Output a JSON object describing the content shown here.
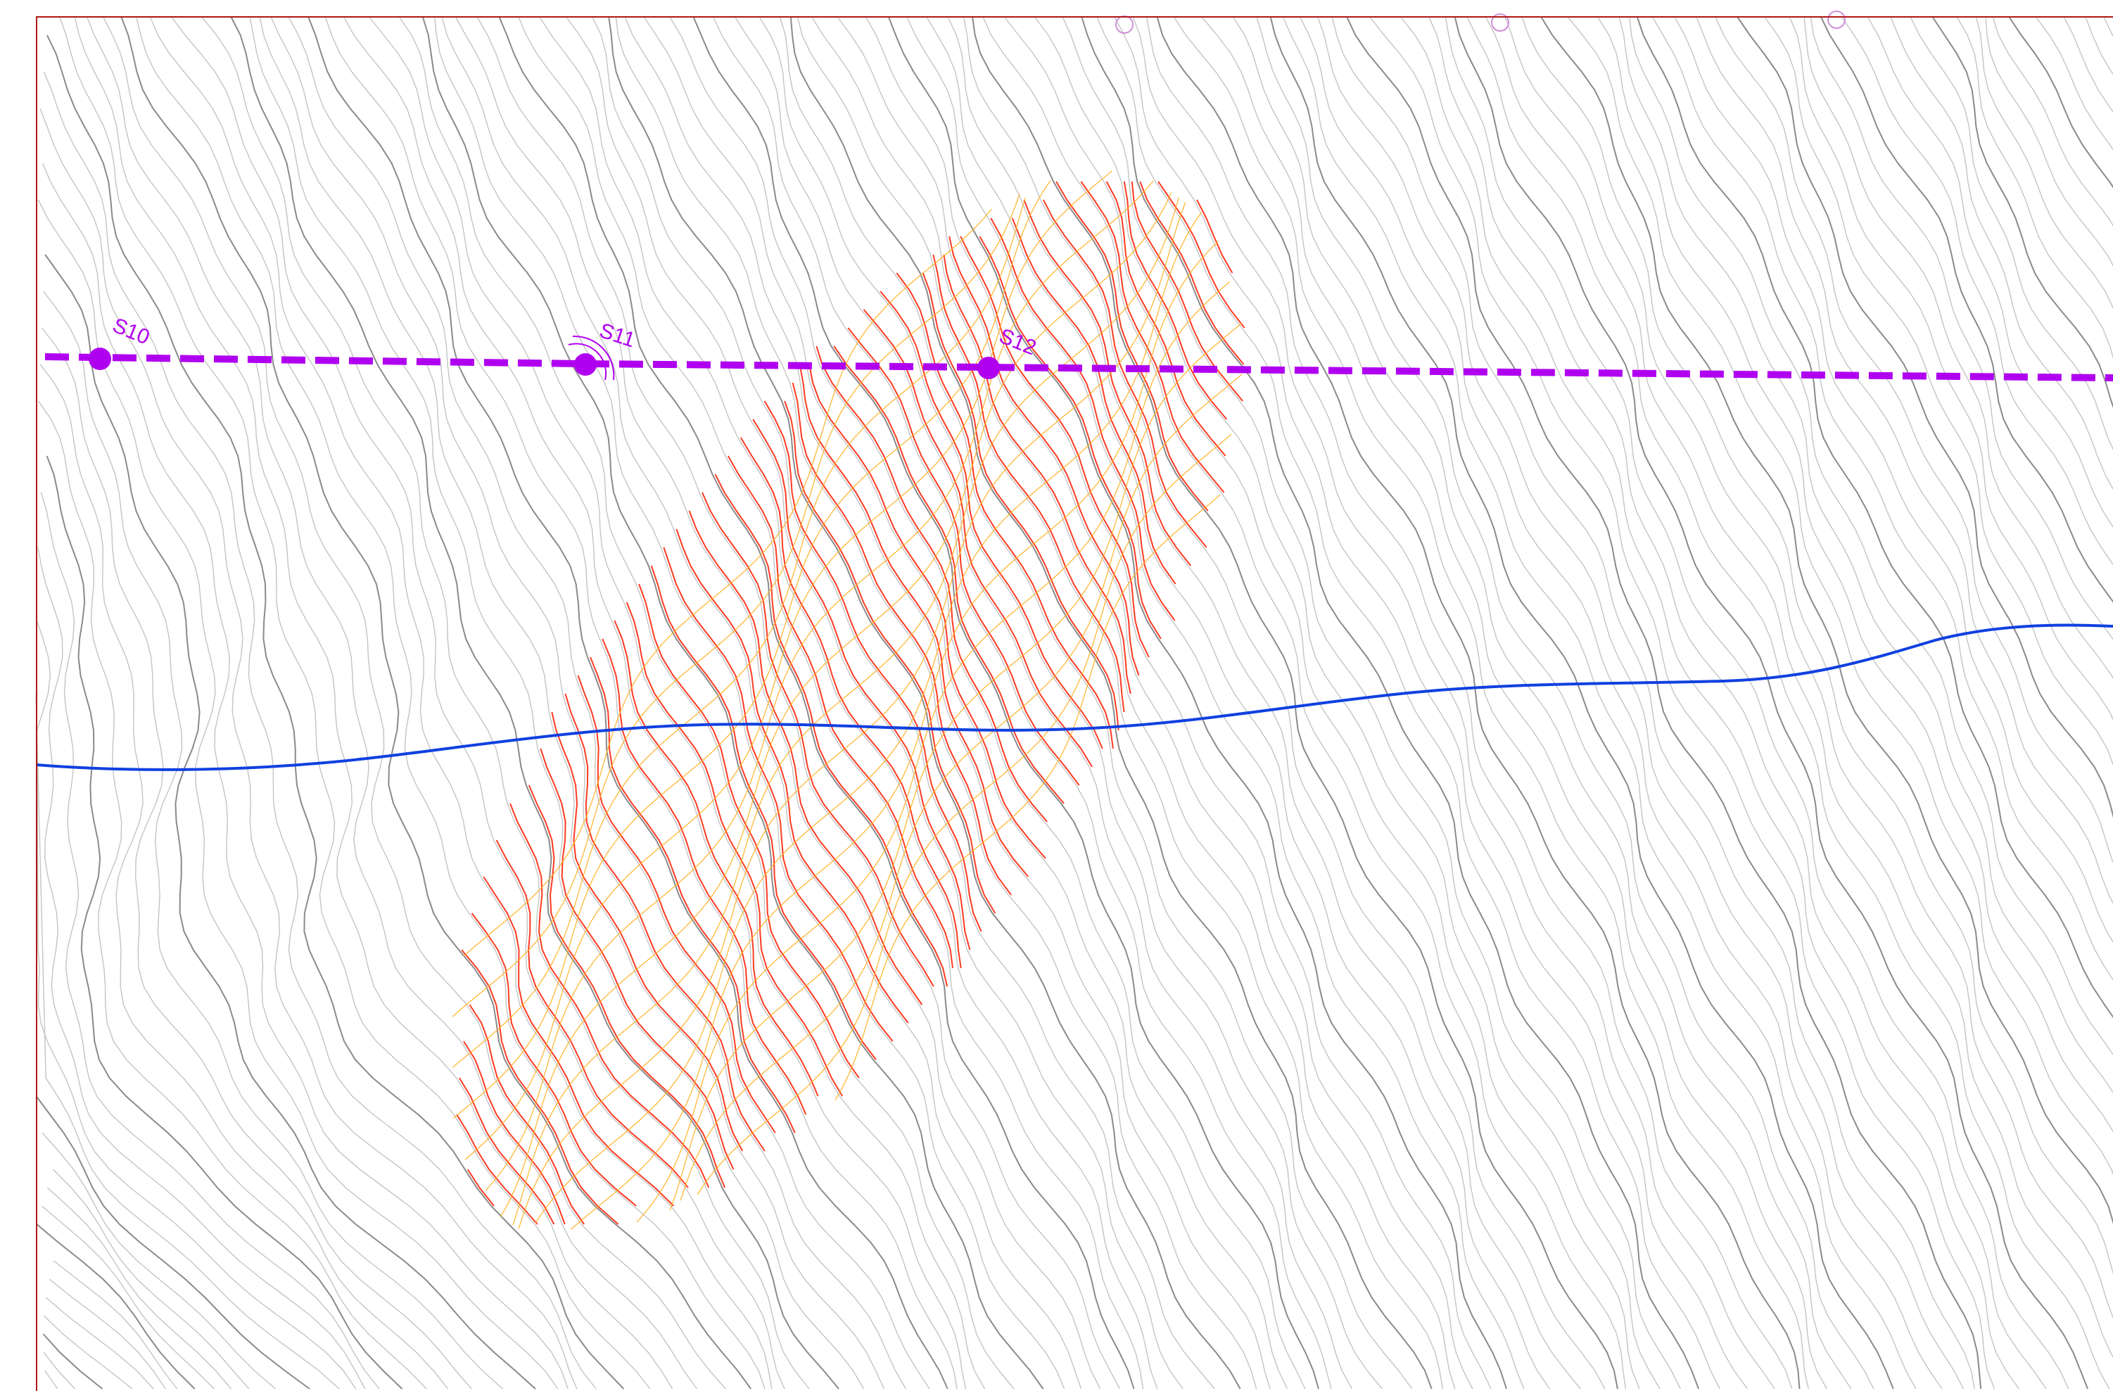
{
  "map": {
    "colors": {
      "background": "#ffffff",
      "frame": "#b01818",
      "contour_minor": "#c4c4c4",
      "contour_major": "#8a8a8a",
      "cut_contour": "#ff3a22",
      "fill_contour": "#ffb020",
      "alignment": "#b000f0",
      "river": "#1040e0"
    },
    "icons": [
      "station-marker-icon",
      "target-marker-icon",
      "survey-point-icon"
    ],
    "stations": [
      {
        "label": "S10"
      },
      {
        "label": "S11"
      },
      {
        "label": "S12"
      }
    ]
  }
}
